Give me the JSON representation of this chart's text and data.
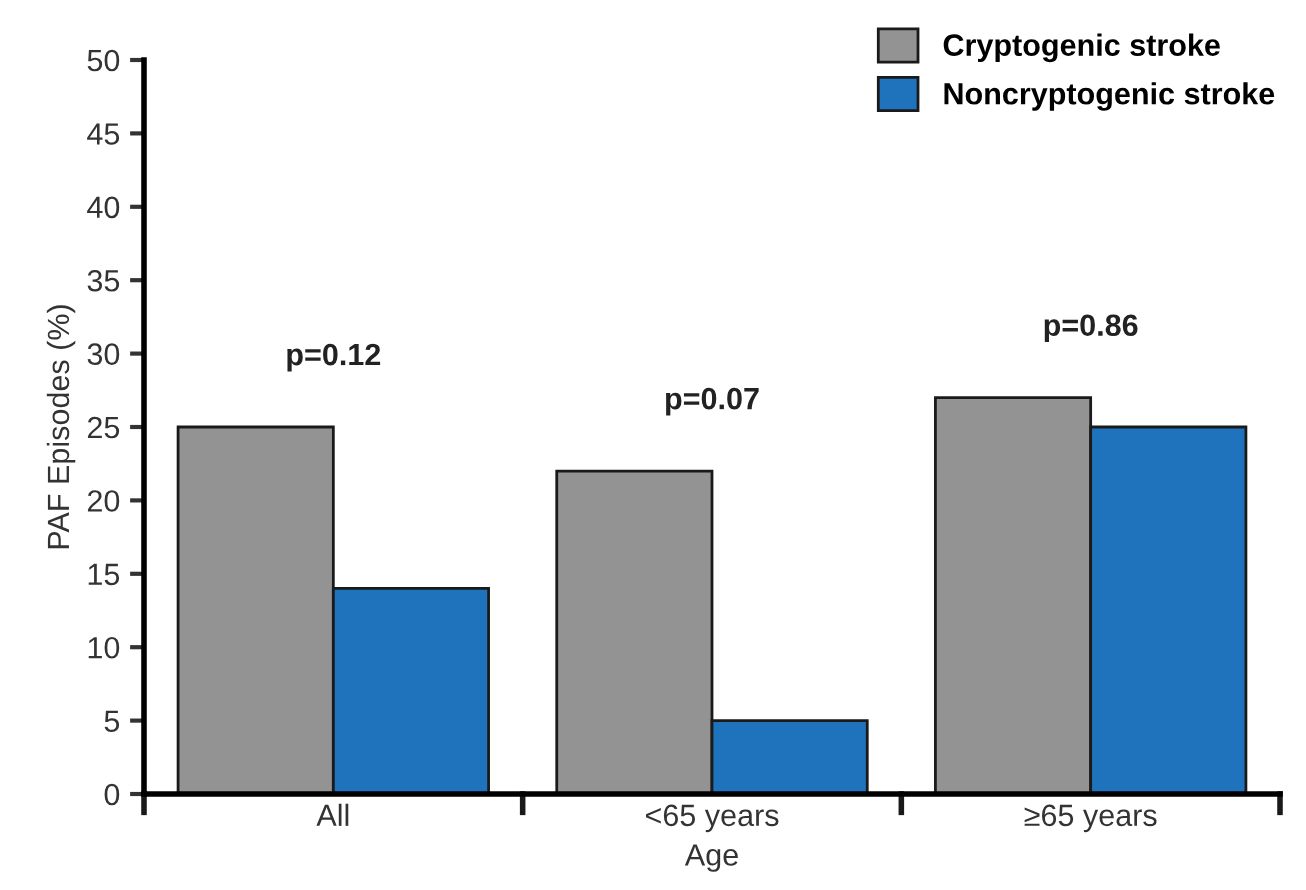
{
  "chart_data": {
    "type": "bar",
    "xlabel": "Age",
    "ylabel": "PAF Episodes (%)",
    "categories": [
      "All",
      "<65 years",
      "≥65 years"
    ],
    "series": [
      {
        "name": "Cryptogenic stroke",
        "color": "#939393",
        "values": [
          25,
          22,
          27
        ]
      },
      {
        "name": "Noncryptogenic stroke",
        "color": "#1f73bc",
        "values": [
          14,
          5,
          25
        ]
      }
    ],
    "ylim": [
      0,
      50
    ],
    "yticks": [
      0,
      5,
      10,
      15,
      20,
      25,
      30,
      35,
      40,
      45,
      50
    ],
    "annotations": [
      "p=0.12",
      "p=0.07",
      "p=0.86"
    ],
    "grid": false,
    "legend": "top right"
  }
}
